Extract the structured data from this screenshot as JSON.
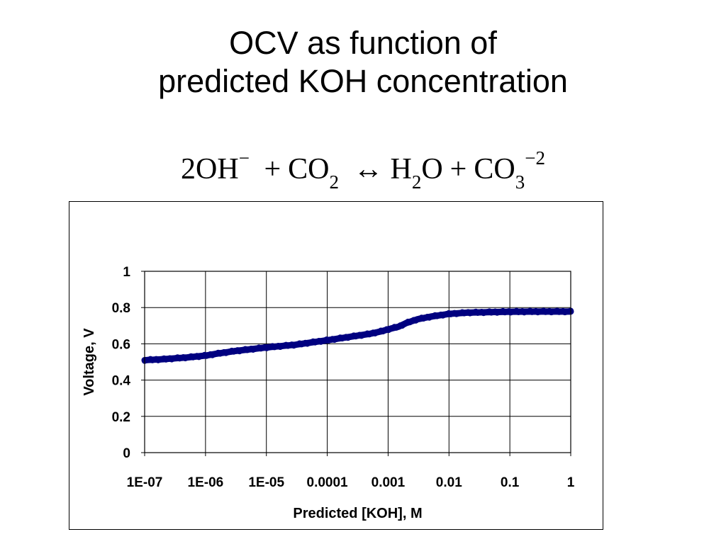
{
  "slide": {
    "title_line1": "OCV as function of",
    "title_line2": "predicted KOH concentration",
    "equation": {
      "lhs_coef": "2OH",
      "lhs_charge": "−",
      "plus": "+",
      "co2": "CO",
      "co2_sub": "2",
      "arrow": "↔",
      "h2o_h": "H",
      "h2o_sub": "2",
      "h2o_o": "O",
      "plus2": "+",
      "co3": "CO",
      "co3_sub": "3",
      "co3_charge": "−2"
    }
  },
  "chart_data": {
    "type": "scatter",
    "xlabel": "Predicted [KOH], M",
    "ylabel": "Voltage, V",
    "x_scale": "log",
    "xlim": [
      1e-07,
      1
    ],
    "ylim": [
      0,
      1
    ],
    "x_ticks": [
      1e-07,
      1e-06,
      1e-05,
      0.0001,
      0.001,
      0.01,
      0.1,
      1
    ],
    "x_tick_labels": [
      "1E-07",
      "1E-06",
      "1E-05",
      "0.0001",
      "0.001",
      "0.01",
      "0.1",
      "1"
    ],
    "y_ticks": [
      0,
      0.2,
      0.4,
      0.6,
      0.8,
      1
    ],
    "y_tick_labels": [
      "0",
      "0.2",
      "0.4",
      "0.6",
      "0.8",
      "1"
    ],
    "grid": true,
    "legend": "none",
    "series_color": "#000080",
    "series": [
      {
        "x": [
          1e-07,
          2e-07,
          5e-07,
          1e-06,
          1.5e-06,
          3e-06,
          1e-05,
          3e-05,
          0.0001,
          0.0002,
          0.0005,
          0.0008,
          0.001,
          0.0015,
          0.002,
          0.003,
          0.005,
          0.01,
          0.02,
          0.05,
          0.1,
          0.3,
          1
        ],
        "y": [
          0.51,
          0.515,
          0.525,
          0.535,
          0.545,
          0.56,
          0.58,
          0.595,
          0.62,
          0.635,
          0.655,
          0.67,
          0.68,
          0.695,
          0.715,
          0.735,
          0.75,
          0.765,
          0.772,
          0.775,
          0.777,
          0.778,
          0.778
        ]
      }
    ]
  }
}
